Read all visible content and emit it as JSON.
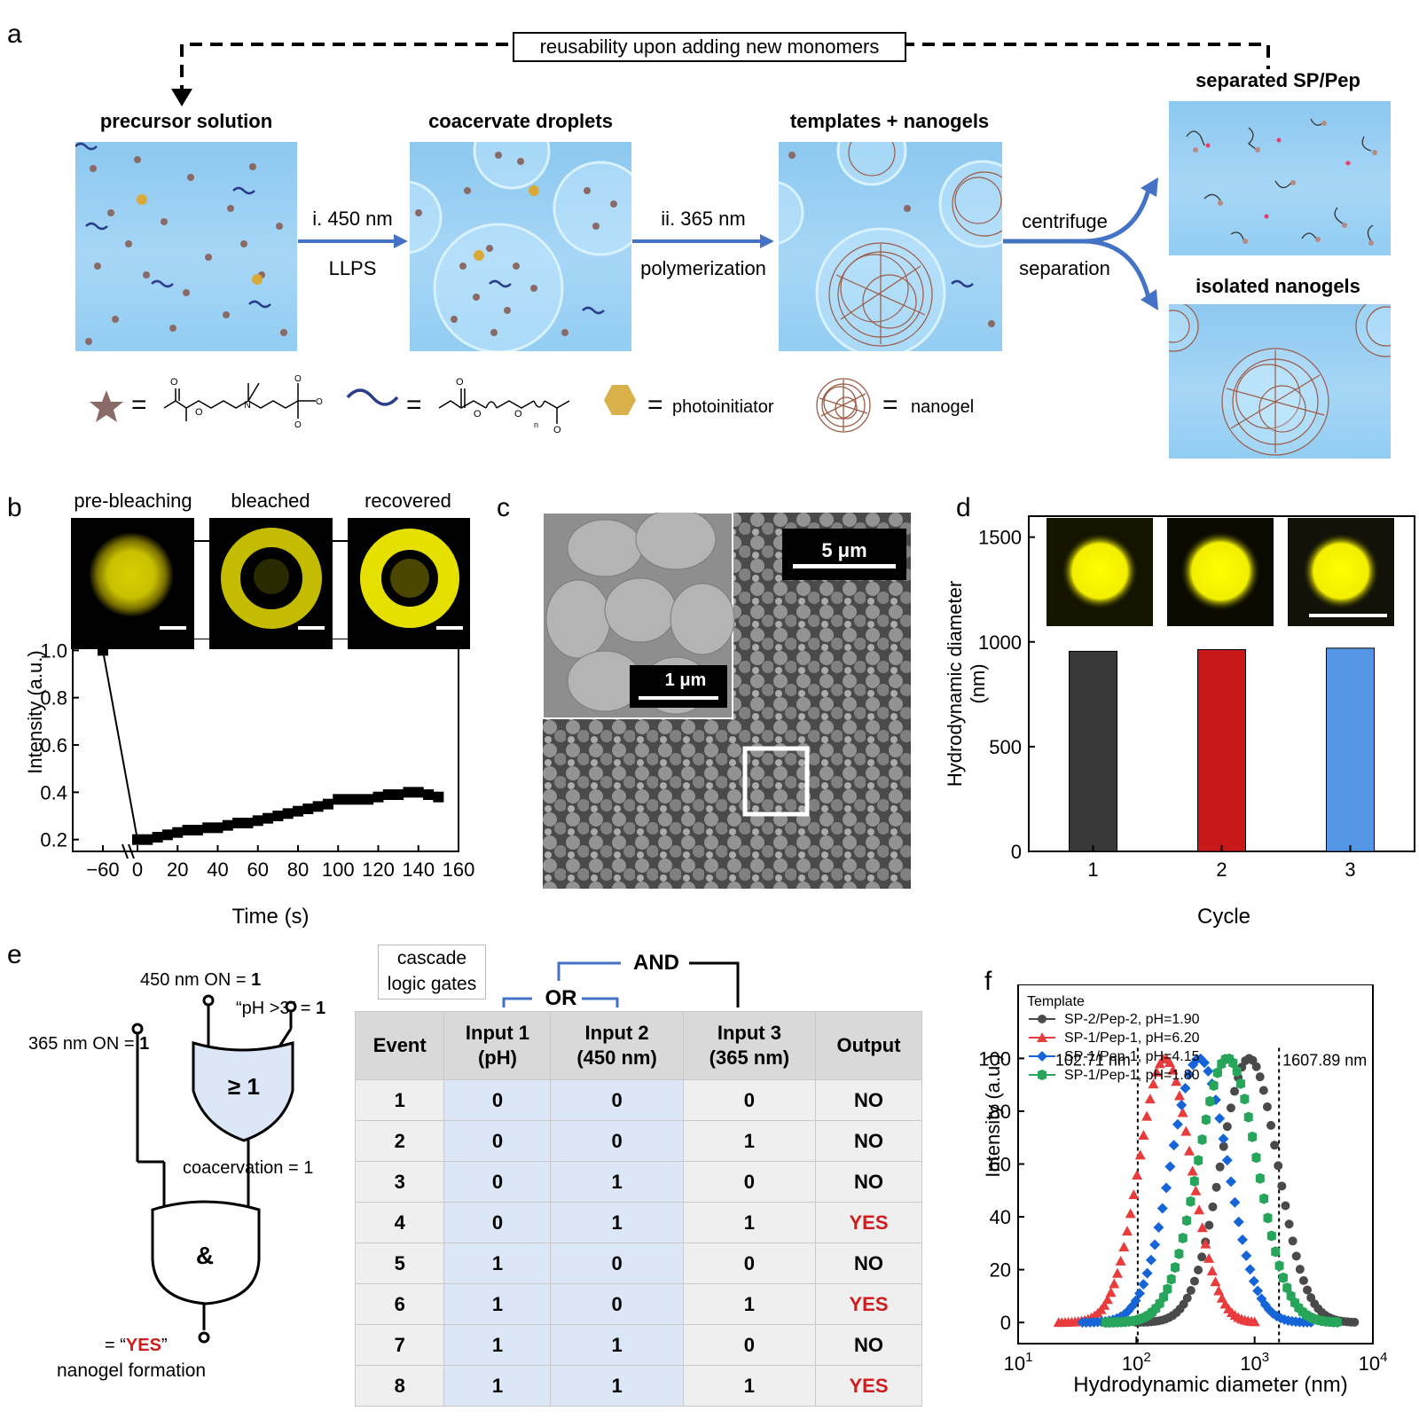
{
  "panel_labels": {
    "a": "a",
    "b": "b",
    "c": "c",
    "d": "d",
    "e": "e",
    "f": "f"
  },
  "panel_a": {
    "reuse_label": "reusability upon adding new monomers",
    "stages": [
      "precursor solution",
      "coacervate droplets",
      "templates + nanogels",
      "separated SP/Pep",
      "isolated nanogels"
    ],
    "step1": {
      "wavelength": "i. 450 nm",
      "process": "LLPS"
    },
    "step2": {
      "wavelength": "ii. 365 nm",
      "process": "polymerization"
    },
    "step3": {
      "line1": "centrifuge",
      "line2": "separation"
    },
    "legend": {
      "equals": "=",
      "photoinitiator": "photoinitiator",
      "nanogel": "nanogel",
      "icons": [
        "star-icon",
        "wave-icon",
        "hexagon-icon",
        "nanogel-icon"
      ]
    }
  },
  "panel_b": {
    "image_labels": [
      "pre-bleaching",
      "bleached",
      "recovered"
    ],
    "xlabel": "Time (s)",
    "ylabel": "Intensity (a.u.)",
    "xticks": [
      "−60",
      "0",
      "20",
      "40",
      "60",
      "80",
      "100",
      "120",
      "140",
      "160"
    ],
    "yticks": [
      "0.2",
      "0.4",
      "0.6",
      "0.8",
      "1.0"
    ]
  },
  "panel_c": {
    "scale_main": "5 μm",
    "scale_inset": "1 μm"
  },
  "panel_d": {
    "xlabel": "Cycle",
    "ylabel": "Hydrodynamic diameter (nm)",
    "yticks": [
      "0",
      "500",
      "1000",
      "1500"
    ]
  },
  "panel_e": {
    "cascade_label": [
      "cascade",
      "logic gates"
    ],
    "and_label": "AND",
    "or_label": "OR",
    "gate_or_symbol": "≥ 1",
    "gate_and_symbol": "&",
    "input_450": "450 nm ON = ",
    "input_ph": "“pH >3” = ",
    "input_365": "365 nm ON = ",
    "one": "1",
    "coacervation": "coacervation = 1",
    "output_prefix": "= “",
    "output_yes": "YES",
    "output_suffix": "”",
    "output_caption": "nanogel formation",
    "table": {
      "headers": [
        "Event",
        "Input 1 (pH)",
        "Input 2 (450 nm)",
        "Input 3 (365 nm)",
        "Output"
      ],
      "header_lines": [
        [
          "Event"
        ],
        [
          "Input 1",
          "(pH)"
        ],
        [
          "Input 2",
          "(450 nm)"
        ],
        [
          "Input 3",
          "(365 nm)"
        ],
        [
          "Output"
        ]
      ],
      "rows": [
        [
          "1",
          "0",
          "0",
          "0",
          "NO"
        ],
        [
          "2",
          "0",
          "0",
          "1",
          "NO"
        ],
        [
          "3",
          "0",
          "1",
          "0",
          "NO"
        ],
        [
          "4",
          "0",
          "1",
          "1",
          "YES"
        ],
        [
          "5",
          "1",
          "0",
          "0",
          "NO"
        ],
        [
          "6",
          "1",
          "0",
          "1",
          "YES"
        ],
        [
          "7",
          "1",
          "1",
          "0",
          "NO"
        ],
        [
          "8",
          "1",
          "1",
          "1",
          "YES"
        ]
      ]
    }
  },
  "chart_data": [
    {
      "id": "b",
      "type": "scatter",
      "xlabel": "Time (s)",
      "ylabel": "Intensity (a.u.)",
      "xlim": [
        -65,
        160
      ],
      "ylim": [
        0.15,
        1.05
      ],
      "axis_break": true,
      "x": [
        -60,
        0,
        5,
        10,
        15,
        20,
        25,
        30,
        35,
        40,
        45,
        50,
        55,
        60,
        65,
        70,
        75,
        80,
        85,
        90,
        95,
        100,
        105,
        110,
        115,
        120,
        125,
        130,
        135,
        140,
        145,
        150
      ],
      "y": [
        1.0,
        0.2,
        0.2,
        0.21,
        0.22,
        0.23,
        0.24,
        0.24,
        0.25,
        0.25,
        0.26,
        0.27,
        0.27,
        0.28,
        0.29,
        0.3,
        0.31,
        0.32,
        0.33,
        0.34,
        0.35,
        0.37,
        0.37,
        0.37,
        0.37,
        0.38,
        0.39,
        0.39,
        0.4,
        0.4,
        0.39,
        0.38
      ]
    },
    {
      "id": "d",
      "type": "bar",
      "categories": [
        "1",
        "2",
        "3"
      ],
      "values": [
        955,
        963,
        970
      ],
      "colors": [
        "#383838",
        "#c81818",
        "#5596e6"
      ],
      "xlabel": "Cycle",
      "ylabel": "Hydrodynamic diameter (nm)",
      "ylim": [
        0,
        1600
      ]
    },
    {
      "id": "f",
      "type": "line",
      "xscale": "log",
      "xlabel": "Hydrodynamic diameter (nm)",
      "ylabel": "Intensity (a.u.)",
      "xlim": [
        10,
        10000
      ],
      "ylim": [
        -8,
        128
      ],
      "xticks": [
        "10",
        "10",
        "10",
        "10"
      ],
      "xtick_exponents": [
        "1",
        "2",
        "3",
        "4"
      ],
      "yticks": [
        "0",
        "20",
        "40",
        "60",
        "80",
        "100"
      ],
      "legend_title": "Template",
      "annotations": [
        "102.71 nm",
        "1607.89 nm"
      ],
      "annotation_x": [
        102.71,
        1607.89
      ],
      "series": [
        {
          "name": "SP-2/Pep-2, pH=1.90",
          "color": "#4a4a4a",
          "marker": "circle",
          "peak": 900,
          "sigma": 0.24,
          "xmin": 100,
          "xmax": 7000,
          "values": [
            0,
            100,
            0
          ]
        },
        {
          "name": "SP-1/Pep-1, pH=6.20",
          "color": "#e83c3c",
          "marker": "triangle",
          "peak": 175,
          "sigma": 0.22,
          "xmin": 22,
          "xmax": 1000,
          "values": [
            0,
            100,
            0
          ]
        },
        {
          "name": "SP-1/Pep-1, pH=4.15",
          "color": "#1565d8",
          "marker": "diamond",
          "peak": 340,
          "sigma": 0.24,
          "xmin": 35,
          "xmax": 3000,
          "values": [
            0,
            100,
            0
          ]
        },
        {
          "name": "SP-1/Pep-1, pH=1.80",
          "color": "#27a55a",
          "marker": "hexagon",
          "peak": 590,
          "sigma": 0.25,
          "xmin": 55,
          "xmax": 5000,
          "values": [
            0,
            100,
            0
          ]
        }
      ]
    }
  ]
}
